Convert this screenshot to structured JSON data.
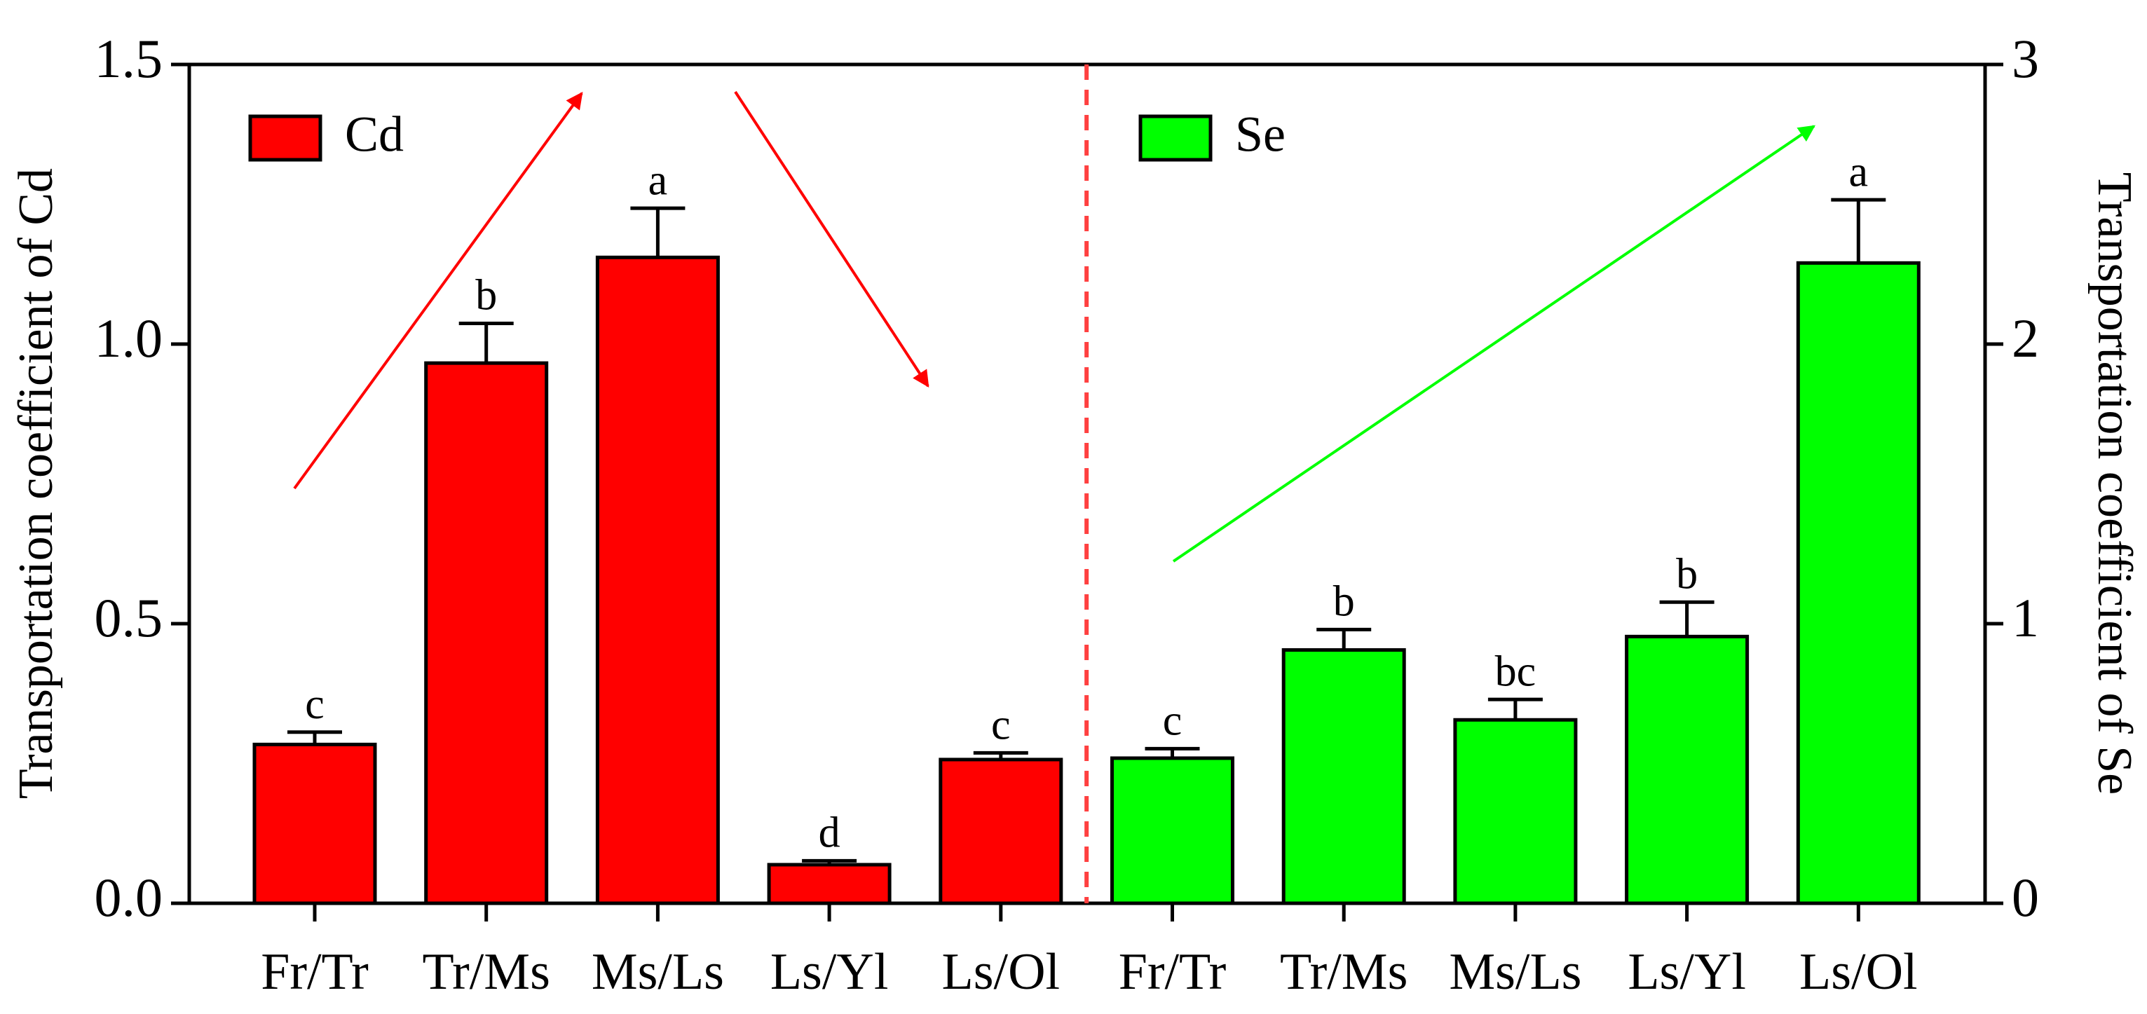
{
  "chart_data": {
    "type": "bar",
    "y_label": "Transportation coefficient of Cd",
    "y2_label": "Transportation coefficient of Se",
    "categories": [
      "Fr/Tr",
      "Tr/Ms",
      "Ms/Ls",
      "Ls/Yl",
      "Ls/Ol",
      "Fr/Tr",
      "Tr/Ms",
      "Ms/Ls",
      "Ls/Yl",
      "Ls/Ol"
    ],
    "series": [
      {
        "name": "Cd",
        "color": "#ff0000",
        "axis": "y",
        "values": [
          0.284,
          0.966,
          1.155,
          0.069,
          0.257,
          null,
          null,
          null,
          null,
          null
        ],
        "errors": [
          0.022,
          0.071,
          0.088,
          0.007,
          0.012,
          null,
          null,
          null,
          null,
          null
        ],
        "sig_labels": [
          "c",
          "b",
          "a",
          "d",
          "c",
          null,
          null,
          null,
          null,
          null
        ]
      },
      {
        "name": "Se",
        "color": "#00ff00",
        "axis": "y2",
        "values": [
          null,
          null,
          null,
          null,
          null,
          0.519,
          0.906,
          0.656,
          0.954,
          2.29
        ],
        "errors": [
          null,
          null,
          null,
          null,
          null,
          0.034,
          0.073,
          0.073,
          0.123,
          0.226
        ],
        "sig_labels": [
          null,
          null,
          null,
          null,
          null,
          "c",
          "b",
          "bc",
          "b",
          "a"
        ]
      }
    ],
    "ylim": [
      0,
      1.5
    ],
    "yticks": [
      {
        "value": 0,
        "label": "0.0"
      },
      {
        "value": 0.5,
        "label": "0.5"
      },
      {
        "value": 1,
        "label": "1.0"
      },
      {
        "value": 1.5,
        "label": "1.5"
      }
    ],
    "y2lim": [
      0,
      3
    ],
    "y2ticks": [
      0,
      1,
      2,
      3
    ],
    "grid": false
  }
}
